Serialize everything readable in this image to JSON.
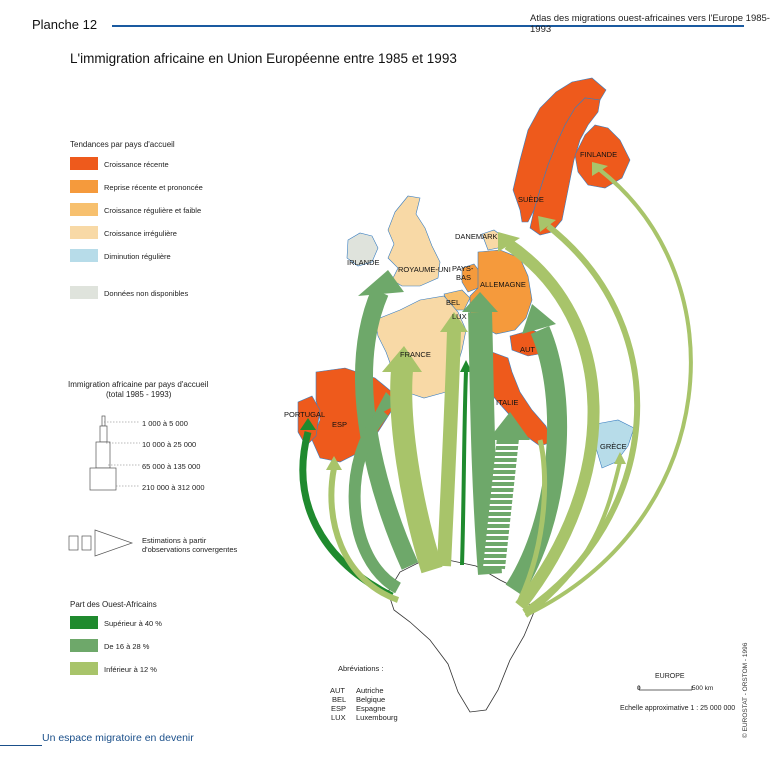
{
  "header": {
    "plate": "Planche 12",
    "atlas": "Atlas des migrations ouest-africaines vers l'Europe 1985-1993"
  },
  "title": "L'immigration africaine en Union Européenne entre 1985 et 1993",
  "legend_trend": {
    "title": "Tendances par pays d'accueil",
    "items": [
      {
        "label": "Croissance récente",
        "color": "#ee5a1c"
      },
      {
        "label": "Reprise récente et prononcée",
        "color": "#f59a3c"
      },
      {
        "label": "Croissance régulière et faible",
        "color": "#f7c06e"
      },
      {
        "label": "Croissance irrégulière",
        "color": "#f8d9a6"
      },
      {
        "label": "Diminution régulière",
        "color": "#b7dce9"
      },
      {
        "label": "Données non disponibles",
        "color": "#dfe3dc"
      }
    ]
  },
  "legend_size": {
    "title": "Immigration africaine par pays d'accueil",
    "subtitle": "(total 1985 - 1993)",
    "classes": [
      "1 000 à 5 000",
      "10 000 à 25 000",
      "65 000 à 135 000",
      "210 000 à 312 000"
    ]
  },
  "legend_estimate": {
    "line1": "Estimations à partir",
    "line2": "d'observations convergentes"
  },
  "legend_share": {
    "title": "Part des Ouest-Africains",
    "items": [
      {
        "label": "Supérieur à 40 %",
        "color": "#1f8a2e"
      },
      {
        "label": "De 16 à 28 %",
        "color": "#6ea86a"
      },
      {
        "label": "Inférieur à 12 %",
        "color": "#a8c46a"
      }
    ]
  },
  "abbreviations": {
    "title": "Abréviations :",
    "items": [
      {
        "code": "AUT",
        "name": "Autriche"
      },
      {
        "code": "BEL",
        "name": "Belgique"
      },
      {
        "code": "ESP",
        "name": "Espagne"
      },
      {
        "code": "LUX",
        "name": "Luxembourg"
      }
    ]
  },
  "scale": {
    "region": "EUROPE",
    "zero": "0",
    "km": "500 km",
    "text": "Echelle approximative 1 : 25 000 000"
  },
  "countries": {
    "finlande": "FINLANDE",
    "suede": "SUÈDE",
    "danemark": "DANEMARK",
    "irlande": "IRLANDE",
    "royaume_uni": "ROYAUME-UNI",
    "pays": "PAYS-",
    "bas": "BAS",
    "allemagne": "ALLEMAGNE",
    "bel": "BEL",
    "lux": "LUX",
    "france": "FRANCE",
    "aut": "AUT",
    "portugal": "PORTUGAL",
    "esp": "ESP",
    "italie": "ITALIE",
    "grece": "GRÈCE"
  },
  "footer": "Un espace migratoire en devenir",
  "credit": "© EUROSTAT - ORSTOM - 1996"
}
